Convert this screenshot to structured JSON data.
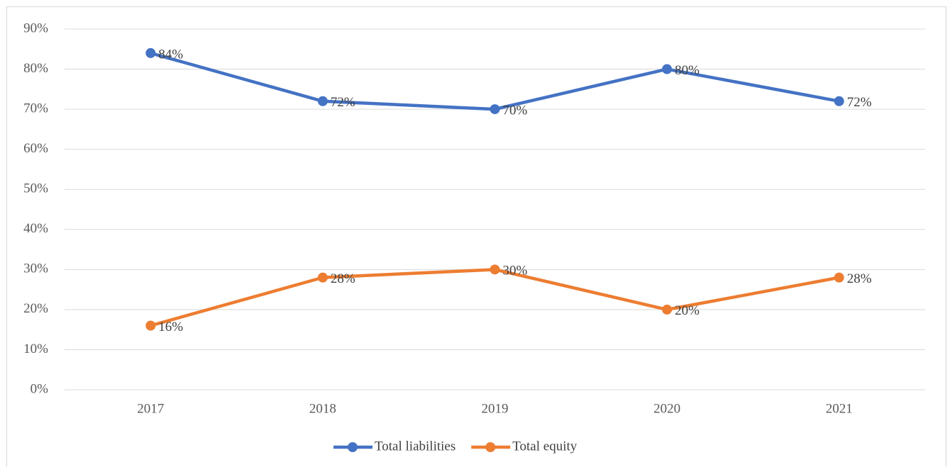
{
  "chart_data": {
    "type": "line",
    "categories": [
      "2017",
      "2018",
      "2019",
      "2020",
      "2021"
    ],
    "series": [
      {
        "name": "Total liabilities",
        "color": "#4472c4",
        "values": [
          84,
          72,
          70,
          80,
          72
        ],
        "value_labels": [
          "84%",
          "72%",
          "70%",
          "80%",
          "72%"
        ]
      },
      {
        "name": "Total equity",
        "color": "#ed7d31",
        "values": [
          16,
          28,
          30,
          20,
          28
        ],
        "value_labels": [
          "16%",
          "28%",
          "30%",
          "20%",
          "28%"
        ]
      }
    ],
    "ylim": [
      0,
      90
    ],
    "yticks": [
      {
        "value": 0,
        "label": "0%"
      },
      {
        "value": 10,
        "label": "10%"
      },
      {
        "value": 20,
        "label": "20%"
      },
      {
        "value": 30,
        "label": "30%"
      },
      {
        "value": 40,
        "label": "40%"
      },
      {
        "value": 50,
        "label": "50%"
      },
      {
        "value": 60,
        "label": "60%"
      },
      {
        "value": 70,
        "label": "70%"
      },
      {
        "value": 80,
        "label": "80%"
      },
      {
        "value": 90,
        "label": "90%"
      }
    ],
    "grid": true,
    "legend": "bottom"
  }
}
